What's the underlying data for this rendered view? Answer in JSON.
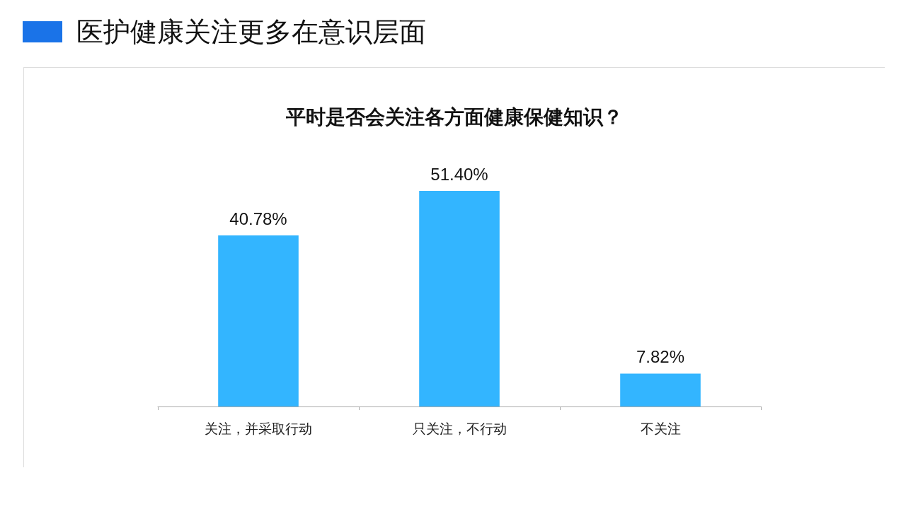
{
  "chart_data": {
    "type": "bar",
    "title": "医护健康关注更多在意识层面",
    "subtitle": "平时是否会关注各方面健康保健知识？",
    "categories": [
      "关注，并采取行动",
      "只关注，不行动",
      "不关注"
    ],
    "values": [
      40.78,
      51.4,
      7.82
    ],
    "value_labels": [
      "40.78%",
      "51.40%",
      "7.82%"
    ],
    "color": "#33b5ff"
  }
}
